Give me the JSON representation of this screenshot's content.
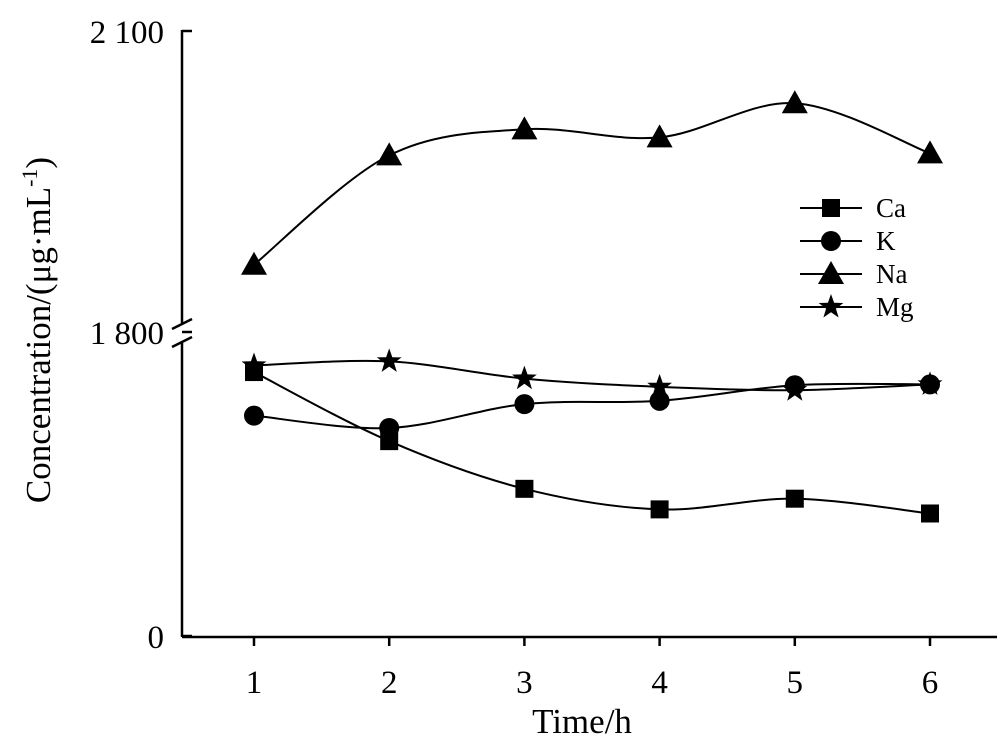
{
  "chart_data": {
    "type": "line",
    "title": "",
    "xlabel": "Time/h",
    "ylabel_main": "Concentration/(μg·mL",
    "ylabel_sup": "-1",
    "ylabel_tail": ")",
    "x": [
      1,
      2,
      3,
      4,
      5,
      6
    ],
    "x_tick_labels": [
      "1",
      "2",
      "3",
      "4",
      "5",
      "6"
    ],
    "y_tick_labels": [
      "0",
      "1 800",
      "2 100"
    ],
    "y_axis_break": true,
    "grid": false,
    "legend_position": "right",
    "upper_segment": {
      "range": [
        1800,
        2100
      ]
    },
    "lower_segment": {
      "range": [
        0,
        1800
      ]
    },
    "series": [
      {
        "name": "Ca",
        "marker": "square",
        "segment": "lower",
        "values": [
          1605,
          1185,
          895,
          770,
          835,
          745
        ]
      },
      {
        "name": "K",
        "marker": "circle",
        "segment": "lower",
        "values": [
          1340,
          1265,
          1410,
          1430,
          1525,
          1530
        ]
      },
      {
        "name": "Na",
        "marker": "triangle",
        "segment": "upper",
        "values": [
          1867,
          1976,
          2002,
          1994,
          2028,
          1978
        ]
      },
      {
        "name": "Mg",
        "marker": "star",
        "segment": "lower",
        "values": [
          1645,
          1670,
          1565,
          1515,
          1495,
          1530
        ]
      }
    ]
  }
}
